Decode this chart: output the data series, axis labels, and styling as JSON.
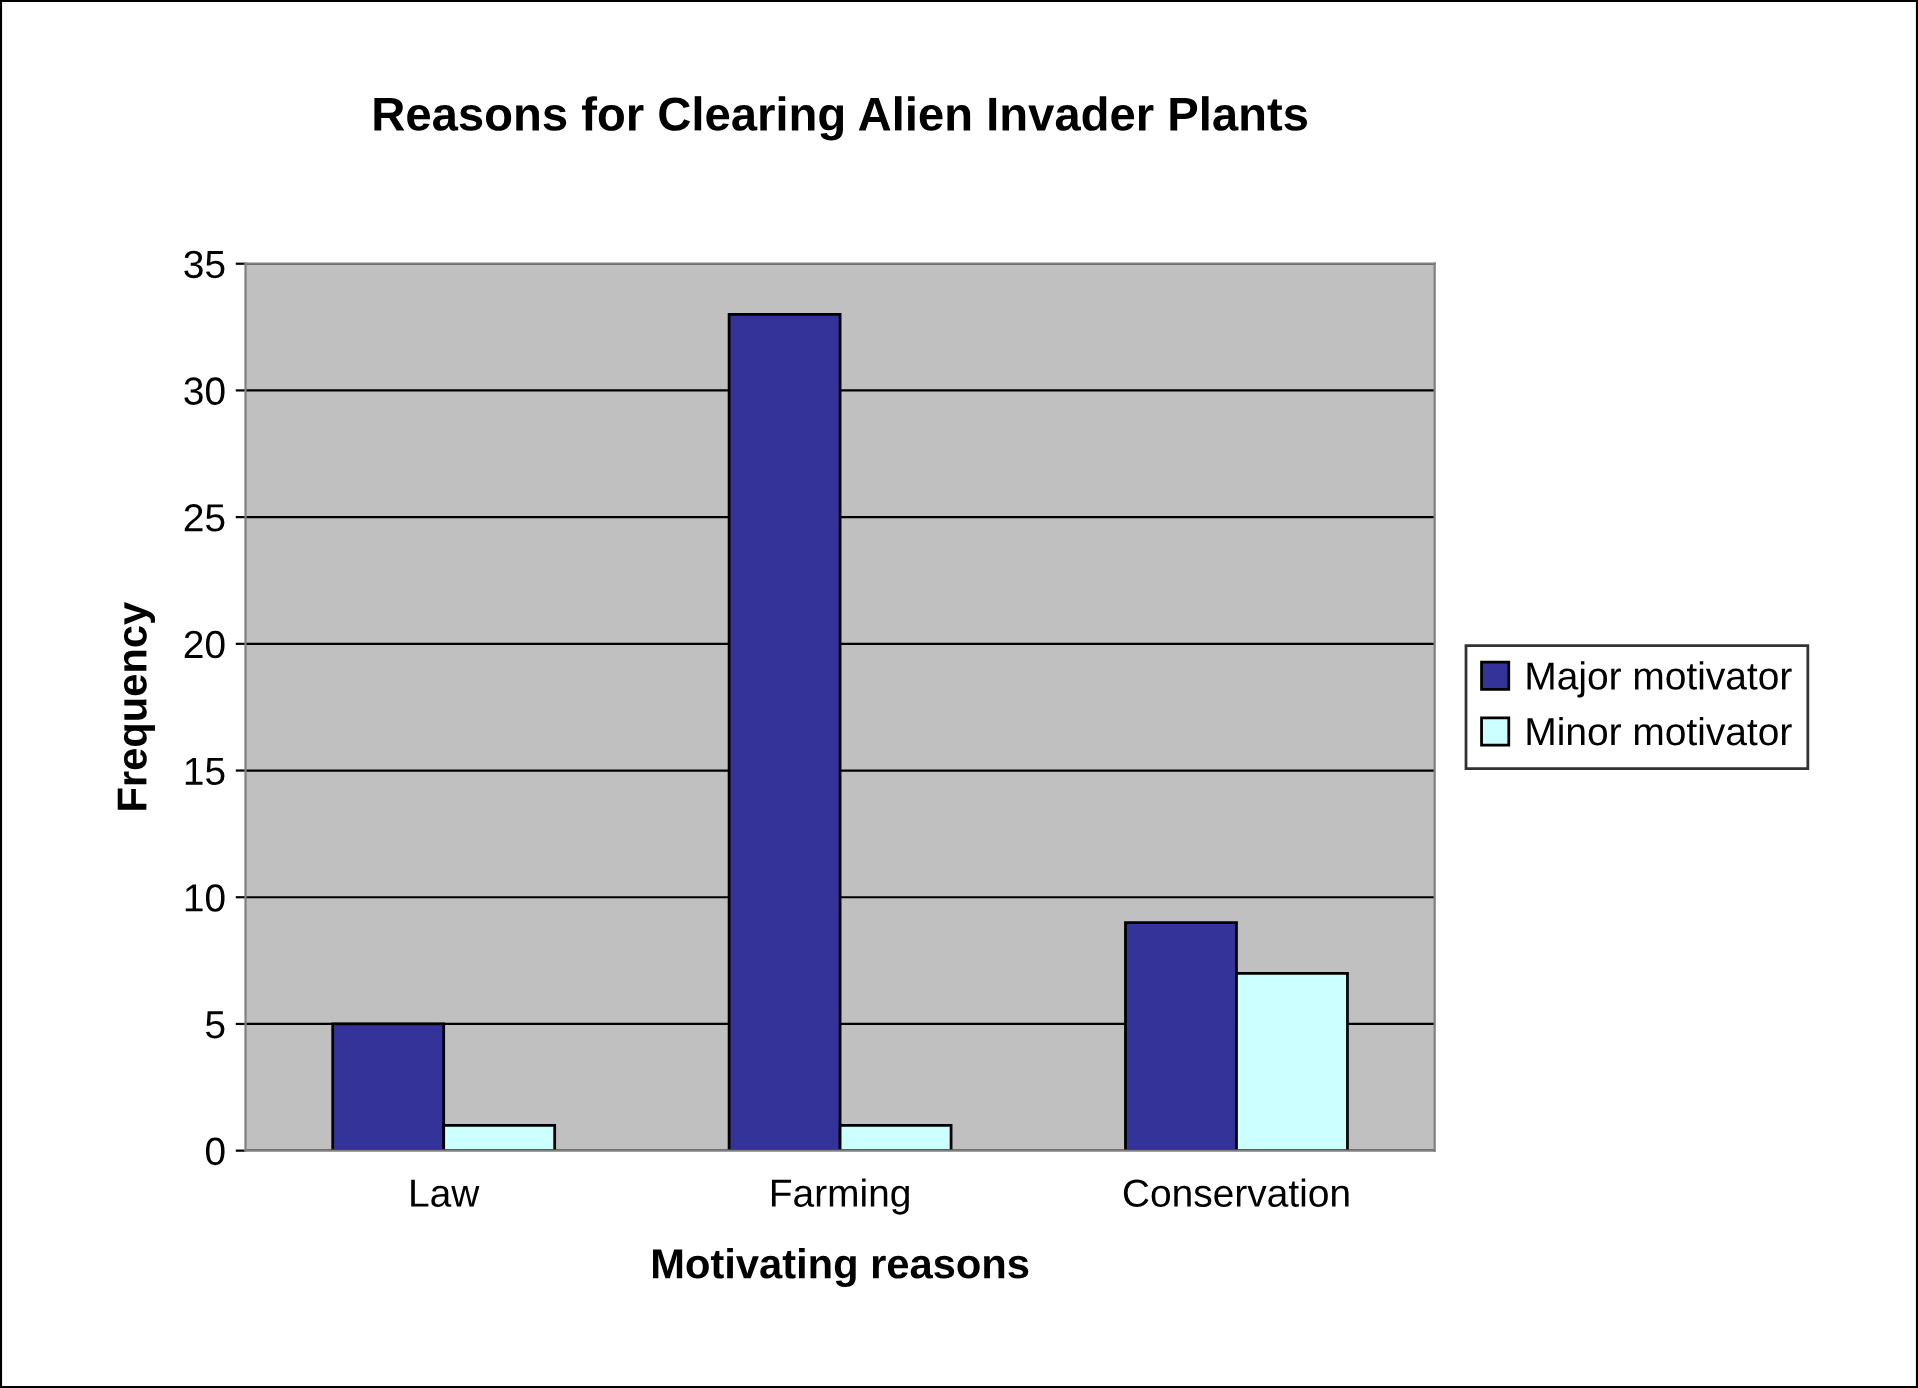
{
  "chart_data": {
    "type": "bar",
    "title": "Reasons for Clearing Alien Invader Plants",
    "xlabel": "Motivating reasons",
    "ylabel": "Frequency",
    "categories": [
      "Law",
      "Farming",
      "Conservation"
    ],
    "series": [
      {
        "name": "Major motivator",
        "color": "#333399",
        "values": [
          5,
          33,
          9
        ]
      },
      {
        "name": "Minor motivator",
        "color": "#ccffff",
        "values": [
          1,
          1,
          7
        ]
      }
    ],
    "ylim": [
      0,
      35
    ],
    "yticks": [
      0,
      5,
      10,
      15,
      20,
      25,
      30,
      35
    ],
    "grid": "y",
    "legend": "right"
  }
}
